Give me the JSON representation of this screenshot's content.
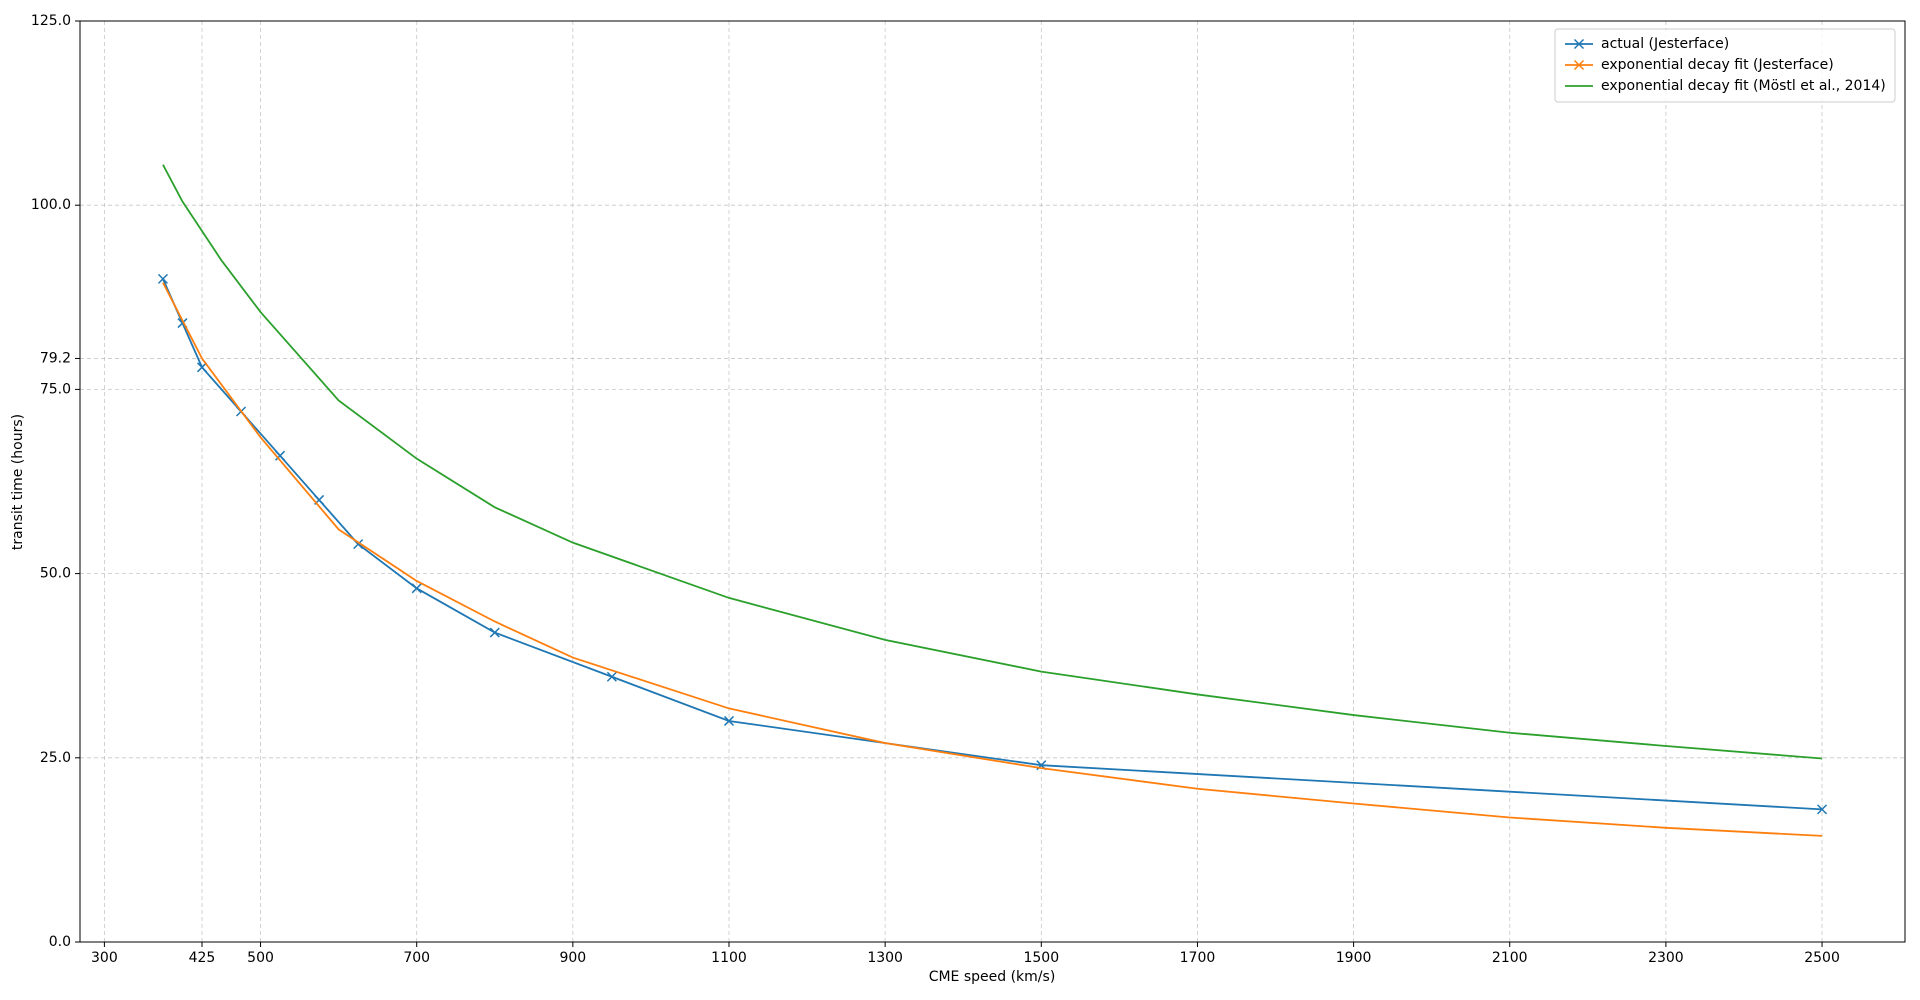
{
  "chart_data": {
    "type": "line",
    "x_label": "CME speed (km/s)",
    "y_label": "transit time (hours)",
    "series": [
      {
        "name": "actual (Jesterface)",
        "color": "#1f77b4",
        "marker": "x",
        "x": [
          375,
          400,
          425,
          475,
          525,
          575,
          625,
          700,
          800,
          950,
          1100,
          1500,
          2500
        ],
        "values": [
          90,
          84,
          78,
          72,
          66,
          60,
          54,
          48,
          42,
          36,
          30,
          24,
          18
        ]
      },
      {
        "name": "exponential decay fit (Jesterface)",
        "color": "#ff7f0e",
        "marker": "x",
        "x": [
          375,
          425,
          500,
          600,
          700,
          800,
          900,
          1100,
          1300,
          1500,
          1700,
          1900,
          2100,
          2300,
          2500
        ],
        "values": [
          89.5,
          79.2,
          68.5,
          56,
          49,
          43.5,
          38.6,
          31.7,
          27,
          23.6,
          20.8,
          18.8,
          16.9,
          15.5,
          14.4
        ]
      },
      {
        "name": "exponential decay fit (Möstl et al., 2014)",
        "color": "#2ca02c",
        "x": [
          375,
          400,
          450,
          500,
          600,
          700,
          800,
          900,
          1100,
          1300,
          1500,
          1700,
          1900,
          2100,
          2300,
          2500
        ],
        "values": [
          105.5,
          100.5,
          92.5,
          85.5,
          73.5,
          65.6,
          59,
          54.2,
          46.7,
          41,
          36.7,
          33.6,
          30.8,
          28.4,
          26.6,
          24.9
        ]
      }
    ],
    "xlim": [
      268.75,
      2606.25
    ],
    "xticks": [
      300,
      425,
      500,
      700,
      900,
      1100,
      1300,
      1500,
      1700,
      1900,
      2100,
      2300,
      2500
    ],
    "ylim": [
      0,
      125
    ],
    "yticks": [
      {
        "value": 0,
        "label": "0.0"
      },
      {
        "value": 25,
        "label": "25.0"
      },
      {
        "value": 50,
        "label": "50.0"
      },
      {
        "value": 75,
        "label": "75.0"
      },
      79.2,
      {
        "value": 100,
        "label": "100.0"
      },
      {
        "value": 125,
        "label": "125.0"
      }
    ],
    "grid": true,
    "legend": "upper right"
  }
}
